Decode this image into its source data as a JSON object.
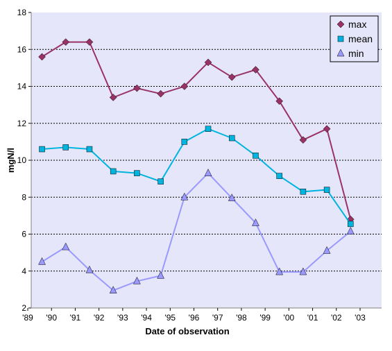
{
  "chart_data": {
    "type": "line",
    "xlabel": "Date of observation",
    "ylabel": "mgN/l",
    "x_ticks": [
      "'89",
      "'90",
      "'91",
      "'92",
      "'93",
      "'94",
      "'95",
      "'96",
      "'97",
      "'98",
      "'99",
      "'00",
      "'01",
      "'02",
      "'03"
    ],
    "xlim": [
      1989,
      2003
    ],
    "ylim": [
      2,
      18
    ],
    "y_ticks": [
      2,
      4,
      6,
      8,
      10,
      12,
      14,
      16,
      18
    ],
    "grid": "horizontal dotted",
    "legend_position": "top-right",
    "plot_background": "#e6e6fa",
    "x": [
      1989.6,
      1990.6,
      1991.6,
      1992.6,
      1993.6,
      1994.6,
      1995.6,
      1996.6,
      1997.6,
      1998.6,
      1999.6,
      2000.6,
      2001.6,
      2002.6
    ],
    "series": [
      {
        "name": "max",
        "color": "#993366",
        "marker": "diamond",
        "values": [
          15.6,
          16.4,
          16.4,
          13.4,
          13.9,
          13.6,
          14.0,
          15.3,
          14.5,
          14.9,
          13.2,
          11.1,
          11.7,
          6.8
        ]
      },
      {
        "name": "mean",
        "color": "#00b4e0",
        "marker": "square",
        "values": [
          10.6,
          10.7,
          10.6,
          9.4,
          9.3,
          8.85,
          11.0,
          11.7,
          11.2,
          10.25,
          9.15,
          8.3,
          8.4,
          6.55
        ]
      },
      {
        "name": "min",
        "color": "#9999ff",
        "marker": "triangle",
        "values": [
          4.5,
          5.3,
          4.05,
          2.95,
          3.45,
          3.75,
          8.0,
          9.3,
          7.95,
          6.6,
          3.95,
          3.95,
          5.1,
          6.15
        ]
      }
    ]
  }
}
